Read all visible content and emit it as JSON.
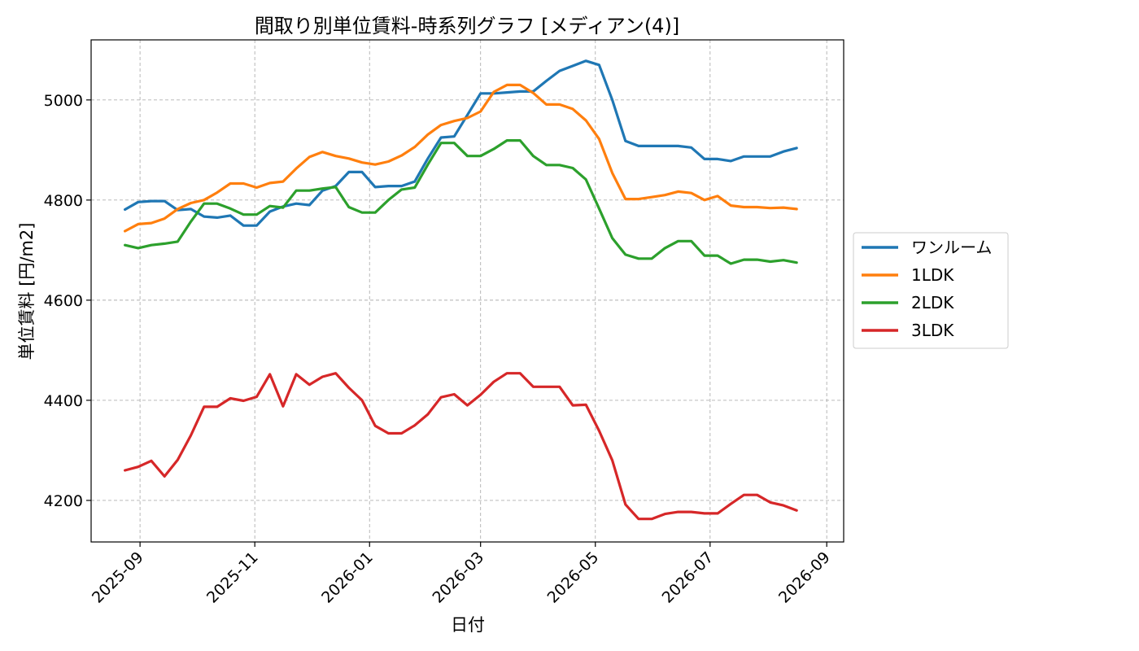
{
  "chart_data": {
    "type": "line",
    "title": "間取り別単位賃料-時系列グラフ [メディアン(4)]",
    "xlabel": "日付",
    "ylabel": "単位賃料 [円/m2]",
    "xlim": [
      "2025-08-06",
      "2026-09-10"
    ],
    "ylim": [
      4117,
      5120
    ],
    "x_ticks": [
      "2025-09",
      "2025-11",
      "2026-01",
      "2026-03",
      "2026-05",
      "2026-07",
      "2026-09"
    ],
    "y_ticks": [
      4200,
      4400,
      4600,
      4800,
      5000
    ],
    "grid": true,
    "legend_position": "right",
    "x": [
      "2025-08-24",
      "2025-08-31",
      "2025-09-07",
      "2025-09-14",
      "2025-09-21",
      "2025-09-28",
      "2025-10-05",
      "2025-10-12",
      "2025-10-19",
      "2025-10-26",
      "2025-11-02",
      "2025-11-09",
      "2025-11-16",
      "2025-11-23",
      "2025-11-30",
      "2025-12-07",
      "2025-12-14",
      "2025-12-21",
      "2025-12-28",
      "2026-01-04",
      "2026-01-11",
      "2026-01-18",
      "2026-01-25",
      "2026-02-01",
      "2026-02-08",
      "2026-02-15",
      "2026-02-22",
      "2026-03-01",
      "2026-03-08",
      "2026-03-15",
      "2026-03-22",
      "2026-03-29",
      "2026-04-05",
      "2026-04-12",
      "2026-04-19",
      "2026-04-26",
      "2026-05-03",
      "2026-05-10",
      "2026-05-17",
      "2026-05-24",
      "2026-05-31",
      "2026-06-07",
      "2026-06-14",
      "2026-06-21",
      "2026-06-28",
      "2026-07-05",
      "2026-07-12",
      "2026-07-19",
      "2026-07-26",
      "2026-08-02",
      "2026-08-09",
      "2026-08-16"
    ],
    "series": [
      {
        "name": "ワンルーム",
        "color": "#1f77b4",
        "values": [
          4781,
          4796,
          4798,
          4798,
          4780,
          4782,
          4767,
          4765,
          4769,
          4749,
          4749,
          4777,
          4787,
          4793,
          4790,
          4819,
          4828,
          4856,
          4856,
          4826,
          4828,
          4828,
          4837,
          4883,
          4925,
          4927,
          4970,
          5013,
          5013,
          5015,
          5017,
          5017,
          5038,
          5058,
          5068,
          5078,
          5070,
          5000,
          4918,
          4908,
          4908,
          4908,
          4908,
          4905,
          4882,
          4882,
          4878,
          4887,
          4887,
          4887,
          4897,
          4904
        ]
      },
      {
        "name": "1LDK",
        "color": "#ff7f0e",
        "values": [
          4738,
          4752,
          4754,
          4763,
          4782,
          4794,
          4800,
          4815,
          4833,
          4833,
          4825,
          4834,
          4837,
          4863,
          4886,
          4896,
          4888,
          4883,
          4875,
          4871,
          4877,
          4889,
          4906,
          4931,
          4950,
          4958,
          4964,
          4977,
          5016,
          5030,
          5030,
          5014,
          4991,
          4991,
          4982,
          4959,
          4922,
          4854,
          4802,
          4802,
          4806,
          4810,
          4817,
          4814,
          4800,
          4808,
          4789,
          4786,
          4786,
          4784,
          4785,
          4782
        ]
      },
      {
        "name": "2LDK",
        "color": "#2ca02c",
        "values": [
          4710,
          4704,
          4710,
          4713,
          4717,
          4757,
          4793,
          4793,
          4783,
          4771,
          4771,
          4788,
          4785,
          4819,
          4819,
          4823,
          4826,
          4786,
          4775,
          4775,
          4800,
          4821,
          4825,
          4871,
          4914,
          4914,
          4888,
          4888,
          4902,
          4919,
          4919,
          4888,
          4870,
          4870,
          4864,
          4841,
          4783,
          4724,
          4691,
          4683,
          4683,
          4704,
          4718,
          4718,
          4689,
          4689,
          4673,
          4681,
          4681,
          4677,
          4680,
          4675
        ]
      },
      {
        "name": "3LDK",
        "color": "#d62728",
        "values": [
          4260,
          4267,
          4279,
          4248,
          4281,
          4330,
          4387,
          4387,
          4404,
          4399,
          4407,
          4452,
          4388,
          4452,
          4431,
          4447,
          4454,
          4425,
          4400,
          4349,
          4334,
          4334,
          4350,
          4372,
          4406,
          4412,
          4390,
          4411,
          4437,
          4454,
          4454,
          4427,
          4427,
          4427,
          4390,
          4391,
          4339,
          4280,
          4192,
          4163,
          4163,
          4173,
          4177,
          4177,
          4174,
          4174,
          4193,
          4211,
          4211,
          4196,
          4190,
          4180
        ]
      }
    ]
  }
}
